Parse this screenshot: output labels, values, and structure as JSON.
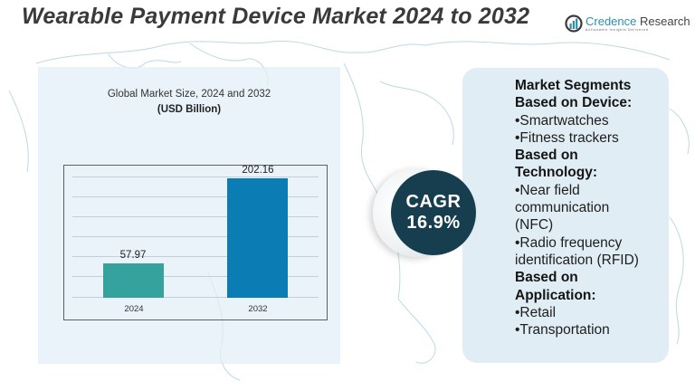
{
  "header": {
    "title": "Wearable Payment Device Market 2024 to 2032"
  },
  "logo": {
    "icon": "bar-chart-logo-icon",
    "name_part1": "Credence",
    "name_part2": " Research",
    "tagline": "Actionable Insights Delivered",
    "brand_color": "#2d8fb0"
  },
  "chart_panel": {
    "title": "Global Market Size, 2024 and 2032",
    "unit": "(USD Billion)"
  },
  "chart_data": {
    "type": "bar",
    "title": "Global Market Size, 2024 and 2032",
    "subtitle": "(USD Billion)",
    "categories": [
      "2024",
      "2032"
    ],
    "values": [
      57.97,
      202.16
    ],
    "value_labels": [
      "57.97",
      "202.16"
    ],
    "colors": [
      "#35a29e",
      "#0b7db4"
    ],
    "xlabel": "",
    "ylabel": "USD Billion",
    "ylim": [
      0,
      230
    ],
    "grid": true,
    "legend": "none"
  },
  "cagr": {
    "label": "CAGR",
    "value": "16.9%",
    "color": "#173e4f"
  },
  "segments": {
    "lines": [
      {
        "text": "Market Segments",
        "bold": true
      },
      {
        "text": "Based  on Device:",
        "bold": true
      },
      {
        "text": "•Smartwatches",
        "bold": false
      },
      {
        "text": "•Fitness trackers",
        "bold": false
      },
      {
        "text": "Based on",
        "bold": true
      },
      {
        "text": "Technology:",
        "bold": true
      },
      {
        "text": "•Near field",
        "bold": false
      },
      {
        "text": "communication",
        "bold": false
      },
      {
        "text": "(NFC)",
        "bold": false
      },
      {
        "text": "•Radio frequency",
        "bold": false
      },
      {
        "text": "identification (RFID)",
        "bold": false
      },
      {
        "text": "Based on",
        "bold": true
      },
      {
        "text": "Application:",
        "bold": true
      },
      {
        "text": "•Retail",
        "bold": false
      },
      {
        "text": "•Transportation",
        "bold": false
      }
    ]
  }
}
